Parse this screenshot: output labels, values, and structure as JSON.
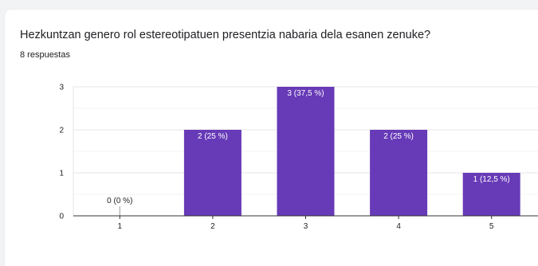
{
  "question": {
    "title": "Hezkuntzan genero rol estereotipatuen presentzia nabaria dela esanen zenuke?",
    "response_count": "8 respuestas"
  },
  "colors": {
    "bar": "#673ab7",
    "grid": "#e5e5e5",
    "axis": "#333333"
  },
  "chart_data": {
    "type": "bar",
    "title": "",
    "xlabel": "",
    "ylabel": "",
    "categories": [
      "1",
      "2",
      "3",
      "4",
      "5"
    ],
    "values": [
      0,
      2,
      3,
      2,
      1
    ],
    "data_labels": [
      "0 (0 %)",
      "2 (25 %)",
      "3 (37,5 %)",
      "2 (25 %)",
      "1 (12,5 %)"
    ],
    "y_ticks": [
      0,
      1,
      2,
      3
    ],
    "ylim": [
      0,
      3
    ],
    "grid": true,
    "legend": "none"
  }
}
